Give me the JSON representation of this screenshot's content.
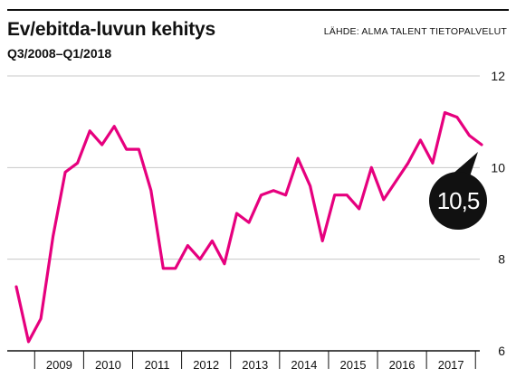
{
  "header": {
    "title": "Ev/ebitda-luvun kehitys",
    "subtitle": "Q3/2008–Q1/2018",
    "source": "LÄHDE: ALMA TALENT TIETOPALVELUT"
  },
  "colors": {
    "line": "#e6007e",
    "grid": "#c8c8c8",
    "axis": "#111111",
    "callout": "#111111"
  },
  "chart_data": {
    "type": "line",
    "title": "Ev/ebitda-luvun kehitys",
    "subtitle": "Q3/2008–Q1/2018",
    "xlabel": "",
    "ylabel": "",
    "ylim": [
      6,
      12
    ],
    "yticks": [
      6,
      8,
      10,
      12
    ],
    "y_axis_side": "right",
    "grid": "horizontal",
    "x_start_quarter": "Q3/2008",
    "year_labels": [
      "2009",
      "2010",
      "2011",
      "2012",
      "2013",
      "2014",
      "2015",
      "2016",
      "2017"
    ],
    "series": [
      {
        "values": [
          7.4,
          6.2,
          6.7,
          8.5,
          9.9,
          10.1,
          10.8,
          10.5,
          10.9,
          10.4,
          10.4,
          9.5,
          7.8,
          7.8,
          8.3,
          8.0,
          8.4,
          7.9,
          9.0,
          8.8,
          9.4,
          9.5,
          9.4,
          10.2,
          9.6,
          8.4,
          9.4,
          9.4,
          9.1,
          10.0,
          9.3,
          9.7,
          10.1,
          10.6,
          10.1,
          11.2,
          11.1,
          10.7,
          10.5
        ]
      }
    ],
    "annotation": {
      "text": "10,5"
    }
  }
}
